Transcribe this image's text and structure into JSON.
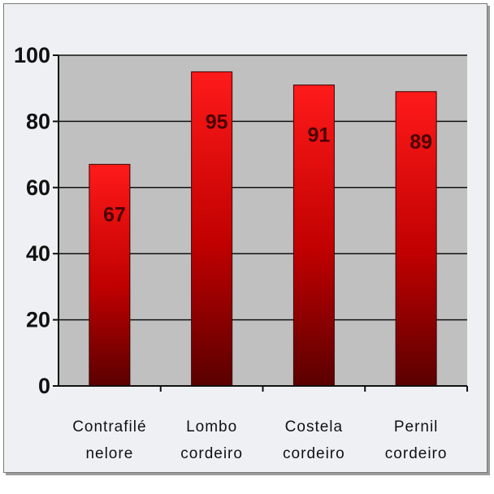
{
  "chart_data": {
    "type": "bar",
    "categories": [
      [
        "Contrafilé",
        "nelore"
      ],
      [
        "Lombo",
        "cordeiro"
      ],
      [
        "Costela",
        "cordeiro"
      ],
      [
        "Pernil",
        "cordeiro"
      ]
    ],
    "values": [
      67,
      95,
      91,
      89
    ],
    "data_labels": [
      "67",
      "95",
      "91",
      "89"
    ],
    "y_ticks": [
      "0",
      "20",
      "40",
      "60",
      "80",
      "100"
    ],
    "ylim": [
      0,
      100
    ],
    "grid": true,
    "legend": "none",
    "colors": {
      "bar_top": "#ff1a1a",
      "bar_bottom": "#5a0000",
      "plot_bg": "#c0c0c0",
      "gridline": "#111111",
      "data_label": "#4a0000"
    }
  }
}
